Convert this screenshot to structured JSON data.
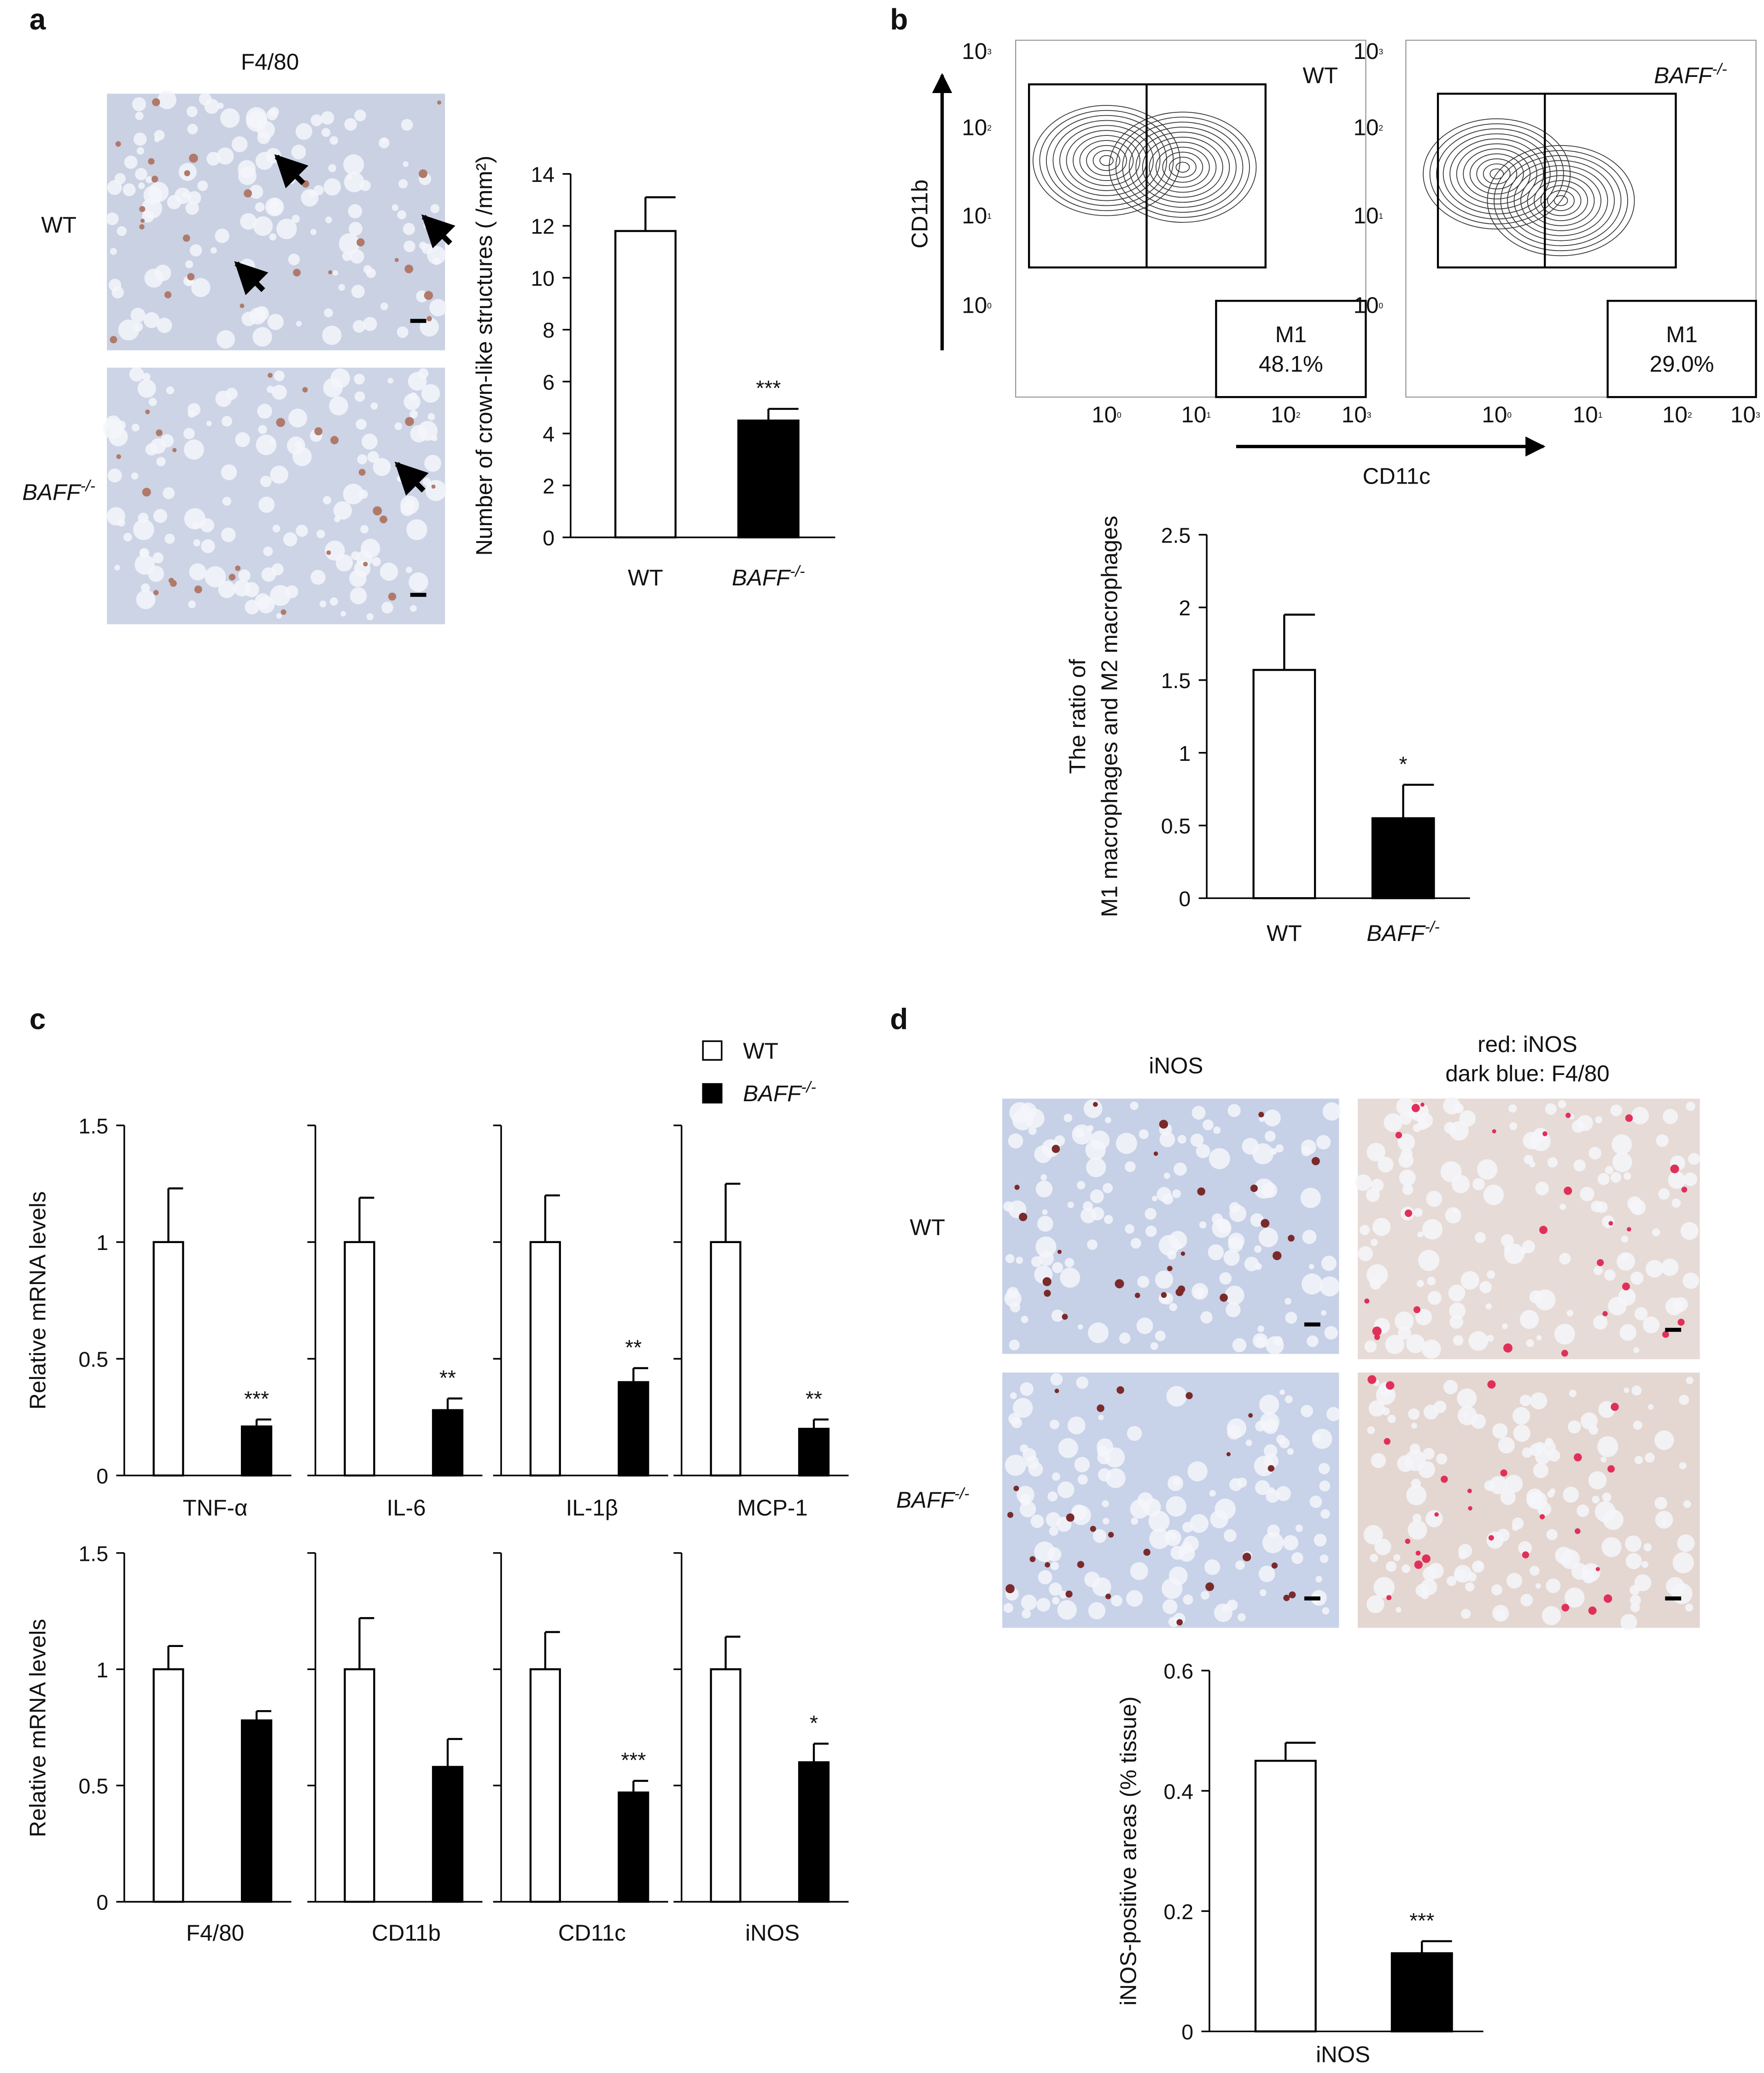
{
  "panel_labels": [
    "a",
    "b",
    "c",
    "d"
  ],
  "panel_a": {
    "stain": "F4/80",
    "rows": [
      "WT",
      "BAFF-/-"
    ]
  },
  "panel_b": {
    "plots": [
      {
        "label": "WT",
        "gate": "M1",
        "percent": "48.1%"
      },
      {
        "label": "BAFF-/-",
        "gate": "M1",
        "percent": "29.0%"
      }
    ],
    "y_axis": "CD11b",
    "x_axis": "CD11c",
    "log_ticks": [
      {
        "base": "10",
        "exp": "0"
      },
      {
        "base": "10",
        "exp": "1"
      },
      {
        "base": "10",
        "exp": "2"
      },
      {
        "base": "10",
        "exp": "3"
      }
    ]
  },
  "panel_d": {
    "columns": [
      [
        "iNOS"
      ],
      [
        "red: iNOS",
        "dark blue: F4/80"
      ]
    ],
    "rows": [
      "WT",
      "BAFF-/-"
    ]
  },
  "chart_data": [
    {
      "type": "bar",
      "categories": [
        "WT",
        "BAFF-/-"
      ],
      "values": [
        11.8,
        4.5
      ],
      "errors": [
        1.3,
        0.45
      ],
      "colors": [
        "#ffffff",
        "#000000"
      ],
      "significance": "***",
      "ylim": [
        0,
        14
      ],
      "yticks": [
        0,
        2,
        4,
        6,
        8,
        10,
        12,
        14
      ],
      "ylabel": "Number of crown-like structures ( /mm²)"
    },
    {
      "type": "bar",
      "categories": [
        "WT",
        "BAFF-/-"
      ],
      "values": [
        1.57,
        0.55
      ],
      "errors": [
        0.38,
        0.23
      ],
      "colors": [
        "#ffffff",
        "#000000"
      ],
      "significance": "*",
      "ylim": [
        0,
        2.5
      ],
      "yticks": [
        0,
        0.5,
        1,
        1.5,
        2,
        2.5
      ],
      "ylabel": [
        "The ratio of",
        "M1 macrophages and M2 macrophages"
      ]
    },
    {
      "type": "bar",
      "categories": [
        "TNF-α"
      ],
      "series": [
        {
          "name": "WT",
          "color": "#ffffff",
          "values": [
            1
          ],
          "errors": [
            0.23
          ]
        },
        {
          "name": "BAFF-/-",
          "color": "#000000",
          "values": [
            0.21
          ],
          "errors": [
            0.03
          ]
        }
      ],
      "significance": "***",
      "ylim": [
        0,
        1.5
      ],
      "yticks": [
        0,
        0.5,
        1,
        1.5
      ],
      "ylabel": "Relative mRNA levels",
      "legend": true
    },
    {
      "type": "bar",
      "categories": [
        "IL-6"
      ],
      "series": [
        {
          "color": "#ffffff",
          "values": [
            1
          ],
          "errors": [
            0.19
          ]
        },
        {
          "color": "#000000",
          "values": [
            0.28
          ],
          "errors": [
            0.05
          ]
        }
      ],
      "significance": "**",
      "ylim": [
        0,
        1.5
      ],
      "yticks": [
        0,
        0.5,
        1,
        1.5
      ],
      "tick_labels": false
    },
    {
      "type": "bar",
      "categories": [
        "IL-1β"
      ],
      "series": [
        {
          "color": "#ffffff",
          "values": [
            1
          ],
          "errors": [
            0.2
          ]
        },
        {
          "color": "#000000",
          "values": [
            0.4
          ],
          "errors": [
            0.06
          ]
        }
      ],
      "significance": "**",
      "ylim": [
        0,
        1.5
      ],
      "yticks": [
        0,
        0.5,
        1,
        1.5
      ],
      "tick_labels": false
    },
    {
      "type": "bar",
      "categories": [
        "MCP-1"
      ],
      "series": [
        {
          "color": "#ffffff",
          "values": [
            1
          ],
          "errors": [
            0.25
          ]
        },
        {
          "color": "#000000",
          "values": [
            0.2
          ],
          "errors": [
            0.04
          ]
        }
      ],
      "significance": "**",
      "ylim": [
        0,
        1.5
      ],
      "yticks": [
        0,
        0.5,
        1,
        1.5
      ],
      "tick_labels": false
    },
    {
      "type": "bar",
      "categories": [
        "F4/80"
      ],
      "series": [
        {
          "color": "#ffffff",
          "values": [
            1
          ],
          "errors": [
            0.1
          ]
        },
        {
          "color": "#000000",
          "values": [
            0.78
          ],
          "errors": [
            0.04
          ]
        }
      ],
      "ylim": [
        0,
        1.5
      ],
      "yticks": [
        0,
        0.5,
        1,
        1.5
      ],
      "ylabel": "Relative mRNA levels"
    },
    {
      "type": "bar",
      "categories": [
        "CD11b"
      ],
      "series": [
        {
          "color": "#ffffff",
          "values": [
            1
          ],
          "errors": [
            0.22
          ]
        },
        {
          "color": "#000000",
          "values": [
            0.58
          ],
          "errors": [
            0.12
          ]
        }
      ],
      "ylim": [
        0,
        1.5
      ],
      "yticks": [
        0,
        0.5,
        1,
        1.5
      ],
      "tick_labels": false
    },
    {
      "type": "bar",
      "categories": [
        "CD11c"
      ],
      "series": [
        {
          "color": "#ffffff",
          "values": [
            1
          ],
          "errors": [
            0.16
          ]
        },
        {
          "color": "#000000",
          "values": [
            0.47
          ],
          "errors": [
            0.05
          ]
        }
      ],
      "significance": "***",
      "ylim": [
        0,
        1.5
      ],
      "yticks": [
        0,
        0.5,
        1,
        1.5
      ],
      "tick_labels": false
    },
    {
      "type": "bar",
      "categories": [
        "iNOS"
      ],
      "series": [
        {
          "color": "#ffffff",
          "values": [
            1
          ],
          "errors": [
            0.14
          ]
        },
        {
          "color": "#000000",
          "values": [
            0.6
          ],
          "errors": [
            0.08
          ]
        }
      ],
      "significance": "*",
      "ylim": [
        0,
        1.5
      ],
      "yticks": [
        0,
        0.5,
        1,
        1.5
      ],
      "tick_labels": false
    },
    {
      "type": "bar",
      "categories": [
        "iNOS"
      ],
      "series": [
        {
          "color": "#ffffff",
          "values": [
            0.45
          ],
          "errors": [
            0.03
          ]
        },
        {
          "color": "#000000",
          "values": [
            0.13
          ],
          "errors": [
            0.02
          ]
        }
      ],
      "significance": "***",
      "ylim": [
        0,
        0.6
      ],
      "yticks": [
        0,
        0.2,
        0.4,
        0.6
      ],
      "ylabel": "iNOS-positive areas (% tissue)"
    }
  ]
}
